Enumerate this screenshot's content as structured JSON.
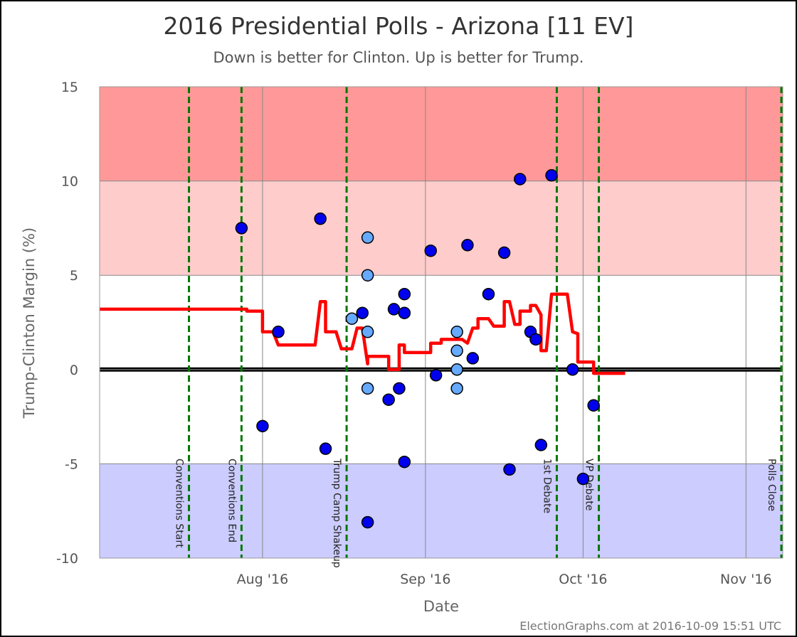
{
  "chart_data": {
    "type": "scatter",
    "title": "2016 Presidential Polls - Arizona [11 EV]",
    "subtitle": "Down is better for Clinton. Up is better for Trump.",
    "xlabel": "Date",
    "ylabel": "Trump-Clinton Margin (%)",
    "ylim": [
      -10,
      15
    ],
    "xlim": [
      "2016-07-01",
      "2016-11-08"
    ],
    "y_ticks": [
      15,
      10,
      5,
      0,
      -5,
      -10
    ],
    "y_tick_labels": [
      "15",
      "10",
      "5",
      "0",
      "-5",
      "-10"
    ],
    "x_ticks": [
      {
        "date": "2016-08-01",
        "label": "Aug '16"
      },
      {
        "date": "2016-09-01",
        "label": "Sep '16"
      },
      {
        "date": "2016-10-01",
        "label": "Oct '16"
      },
      {
        "date": "2016-11-01",
        "label": "Nov '16"
      }
    ],
    "bands": [
      {
        "from": 10,
        "to": 15,
        "color": "#ff9999"
      },
      {
        "from": 5,
        "to": 10,
        "color": "#ffcccc"
      },
      {
        "from": -10,
        "to": -5,
        "color": "#ccccff"
      }
    ],
    "events": [
      {
        "date": "2016-07-18",
        "label": "Conventions Start"
      },
      {
        "date": "2016-07-28",
        "label": "Conventions End"
      },
      {
        "date": "2016-08-17",
        "label": "Trump Camp Shakeup"
      },
      {
        "date": "2016-09-26",
        "label": "1st Debate"
      },
      {
        "date": "2016-10-04",
        "label": "VP Debate"
      },
      {
        "date": "2016-11-08",
        "label": "Polls Close"
      }
    ],
    "series": [
      {
        "type": "scatter",
        "color": "#0000ee",
        "points": [
          [
            "2016-07-28",
            7.5
          ],
          [
            "2016-08-01",
            -3.0
          ],
          [
            "2016-08-04",
            2.0
          ],
          [
            "2016-08-12",
            8.0
          ],
          [
            "2016-08-13",
            -4.2
          ],
          [
            "2016-08-20",
            3.0
          ],
          [
            "2016-08-21",
            -8.1
          ],
          [
            "2016-08-25",
            -1.6
          ],
          [
            "2016-08-26",
            3.2
          ],
          [
            "2016-08-27",
            -1.0
          ],
          [
            "2016-08-28",
            4.0
          ],
          [
            "2016-08-28",
            3.0
          ],
          [
            "2016-08-28",
            -4.9
          ],
          [
            "2016-09-02",
            6.3
          ],
          [
            "2016-09-03",
            -0.3
          ],
          [
            "2016-09-09",
            6.6
          ],
          [
            "2016-09-10",
            0.6
          ],
          [
            "2016-09-13",
            4.0
          ],
          [
            "2016-09-16",
            6.2
          ],
          [
            "2016-09-17",
            -5.3
          ],
          [
            "2016-09-19",
            10.1
          ],
          [
            "2016-09-21",
            2.0
          ],
          [
            "2016-09-22",
            1.6
          ],
          [
            "2016-09-23",
            -4.0
          ],
          [
            "2016-09-25",
            10.3
          ],
          [
            "2016-09-29",
            0.0
          ],
          [
            "2016-10-01",
            -5.8
          ],
          [
            "2016-10-03",
            -1.9
          ]
        ]
      },
      {
        "type": "scatter",
        "color": "#66aaff",
        "points": [
          [
            "2016-08-18",
            2.7
          ],
          [
            "2016-08-21",
            7.0
          ],
          [
            "2016-08-21",
            5.0
          ],
          [
            "2016-08-21",
            2.0
          ],
          [
            "2016-08-21",
            -1.0
          ],
          [
            "2016-09-07",
            2.0
          ],
          [
            "2016-09-07",
            1.0
          ],
          [
            "2016-09-07",
            0.0
          ],
          [
            "2016-09-07",
            -1.0
          ]
        ]
      },
      {
        "type": "line",
        "color": "#ff0000",
        "points": [
          [
            "2016-07-01",
            3.2
          ],
          [
            "2016-07-29",
            3.2
          ],
          [
            "2016-07-29",
            3.1
          ],
          [
            "2016-08-01",
            3.1
          ],
          [
            "2016-08-01",
            2.0
          ],
          [
            "2016-08-03",
            2.0
          ],
          [
            "2016-08-04",
            1.3
          ],
          [
            "2016-08-11",
            1.3
          ],
          [
            "2016-08-12",
            3.6
          ],
          [
            "2016-08-13",
            3.6
          ],
          [
            "2016-08-13",
            2.0
          ],
          [
            "2016-08-15",
            2.0
          ],
          [
            "2016-08-16",
            1.1
          ],
          [
            "2016-08-18",
            1.1
          ],
          [
            "2016-08-19",
            2.2
          ],
          [
            "2016-08-20",
            2.2
          ],
          [
            "2016-08-21",
            0.3
          ],
          [
            "2016-08-21",
            0.7
          ],
          [
            "2016-08-25",
            0.7
          ],
          [
            "2016-08-25",
            0.0
          ],
          [
            "2016-08-27",
            0.0
          ],
          [
            "2016-08-27",
            1.3
          ],
          [
            "2016-08-28",
            1.3
          ],
          [
            "2016-08-28",
            0.9
          ],
          [
            "2016-09-02",
            0.9
          ],
          [
            "2016-09-02",
            1.4
          ],
          [
            "2016-09-04",
            1.4
          ],
          [
            "2016-09-04",
            1.6
          ],
          [
            "2016-09-08",
            1.6
          ],
          [
            "2016-09-09",
            1.4
          ],
          [
            "2016-09-10",
            2.2
          ],
          [
            "2016-09-11",
            2.2
          ],
          [
            "2016-09-11",
            2.7
          ],
          [
            "2016-09-13",
            2.7
          ],
          [
            "2016-09-14",
            2.3
          ],
          [
            "2016-09-16",
            2.3
          ],
          [
            "2016-09-16",
            3.6
          ],
          [
            "2016-09-17",
            3.6
          ],
          [
            "2016-09-18",
            2.4
          ],
          [
            "2016-09-19",
            2.4
          ],
          [
            "2016-09-19",
            3.1
          ],
          [
            "2016-09-21",
            3.1
          ],
          [
            "2016-09-21",
            3.4
          ],
          [
            "2016-09-22",
            3.4
          ],
          [
            "2016-09-23",
            2.9
          ],
          [
            "2016-09-23",
            1.0
          ],
          [
            "2016-09-24",
            1.0
          ],
          [
            "2016-09-25",
            4.0
          ],
          [
            "2016-09-27",
            4.0
          ],
          [
            "2016-09-28",
            4.0
          ],
          [
            "2016-09-29",
            2.0
          ],
          [
            "2016-09-30",
            1.9
          ],
          [
            "2016-09-30",
            0.4
          ],
          [
            "2016-10-03",
            0.4
          ],
          [
            "2016-10-03",
            -0.2
          ],
          [
            "2016-10-09",
            -0.2
          ]
        ]
      }
    ],
    "credit": "ElectionGraphs.com at 2016-10-09 15:51 UTC"
  }
}
